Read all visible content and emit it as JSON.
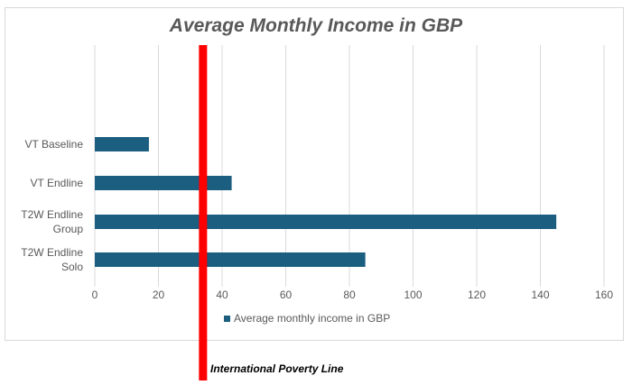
{
  "chart_data": {
    "type": "bar",
    "orientation": "horizontal",
    "title": "Average Monthly Income in GBP",
    "categories": [
      "VT Baseline",
      "VT Endline",
      "T2W Endline Group",
      "T2W Endline Solo"
    ],
    "category_lines": [
      [
        "VT Baseline"
      ],
      [
        "VT Endline"
      ],
      [
        "T2W Endline",
        "Group"
      ],
      [
        "T2W Endline",
        "Solo"
      ]
    ],
    "series": [
      {
        "name": "Average monthly income in GBP",
        "values": [
          17,
          43,
          145,
          85
        ],
        "color": "#1b5e80"
      }
    ],
    "xlim": [
      0,
      160
    ],
    "xticks": [
      0,
      20,
      40,
      60,
      80,
      100,
      120,
      140,
      160
    ],
    "grid": true,
    "legend": "bottom",
    "annotation": {
      "label": "International Poverty Line",
      "value": 34,
      "color": "#ff0000"
    }
  }
}
